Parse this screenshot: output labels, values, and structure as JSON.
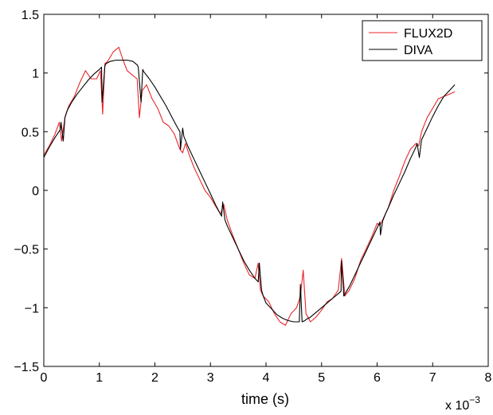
{
  "chart_data": {
    "type": "line",
    "title": "",
    "xlabel": "time (s)",
    "ylabel": "",
    "x_multiplier": "x 10",
    "x_multiplier_exponent": "−3",
    "xlim": [
      0,
      8
    ],
    "ylim": [
      -1.5,
      1.5
    ],
    "xticks": [
      "0",
      "1",
      "2",
      "3",
      "4",
      "5",
      "6",
      "7",
      "8"
    ],
    "yticks": [
      "−1.5",
      "−1",
      "−0.5",
      "0",
      "0.5",
      "1",
      "1.5"
    ],
    "legend_position": "top-right",
    "grid": false,
    "series": [
      {
        "name": "FLUX2D",
        "color": "#e8262b",
        "x": [
          0,
          0.1,
          0.2,
          0.28,
          0.32,
          0.38,
          0.45,
          0.55,
          0.65,
          0.75,
          0.85,
          0.95,
          1.02,
          1.06,
          1.1,
          1.15,
          1.25,
          1.35,
          1.42,
          1.5,
          1.6,
          1.68,
          1.72,
          1.77,
          1.85,
          1.95,
          2.05,
          2.15,
          2.25,
          2.35,
          2.45,
          2.5,
          2.55,
          2.62,
          2.7,
          2.8,
          2.9,
          3.0,
          3.1,
          3.18,
          3.24,
          3.3,
          3.4,
          3.5,
          3.6,
          3.7,
          3.8,
          3.86,
          3.9,
          3.95,
          4.05,
          4.15,
          4.25,
          4.35,
          4.45,
          4.55,
          4.62,
          4.67,
          4.72,
          4.8,
          4.9,
          5.0,
          5.1,
          5.2,
          5.3,
          5.36,
          5.42,
          5.5,
          5.6,
          5.7,
          5.8,
          5.9,
          6.0,
          6.05,
          6.1,
          6.2,
          6.3,
          6.4,
          6.5,
          6.6,
          6.7,
          6.75,
          6.8,
          6.9,
          7.0,
          7.1,
          7.2,
          7.3,
          7.4
        ],
        "y": [
          0.3,
          0.38,
          0.48,
          0.58,
          0.42,
          0.62,
          0.72,
          0.8,
          0.92,
          1.02,
          0.95,
          0.95,
          1.02,
          0.65,
          1.08,
          1.1,
          1.18,
          1.22,
          1.12,
          1.02,
          0.98,
          0.95,
          0.62,
          0.85,
          0.9,
          0.78,
          0.7,
          0.58,
          0.55,
          0.48,
          0.35,
          0.32,
          0.4,
          0.3,
          0.2,
          0.1,
          0.0,
          -0.06,
          -0.14,
          -0.2,
          -0.12,
          -0.25,
          -0.38,
          -0.5,
          -0.62,
          -0.72,
          -0.75,
          -0.62,
          -0.85,
          -0.9,
          -0.95,
          -1.05,
          -1.12,
          -1.15,
          -1.05,
          -1.0,
          -0.9,
          -0.68,
          -1.05,
          -1.12,
          -1.08,
          -1.02,
          -0.95,
          -0.92,
          -0.85,
          -0.58,
          -0.9,
          -0.85,
          -0.75,
          -0.6,
          -0.5,
          -0.4,
          -0.28,
          -0.3,
          -0.25,
          -0.15,
          0.0,
          0.12,
          0.25,
          0.35,
          0.4,
          0.38,
          0.5,
          0.62,
          0.7,
          0.78,
          0.8,
          0.82,
          0.84
        ]
      },
      {
        "name": "DIVA",
        "color": "#000000",
        "x": [
          0,
          0.1,
          0.2,
          0.3,
          0.31,
          0.35,
          0.38,
          0.42,
          0.5,
          0.6,
          0.7,
          0.8,
          0.9,
          1.0,
          1.04,
          1.05,
          1.1,
          1.12,
          1.2,
          1.3,
          1.4,
          1.5,
          1.6,
          1.68,
          1.7,
          1.75,
          1.78,
          1.8,
          1.9,
          2.0,
          2.1,
          2.2,
          2.3,
          2.4,
          2.45,
          2.46,
          2.5,
          2.52,
          2.6,
          2.7,
          2.8,
          2.9,
          3.0,
          3.1,
          3.2,
          3.22,
          3.26,
          3.3,
          3.4,
          3.5,
          3.6,
          3.7,
          3.8,
          3.86,
          3.88,
          3.92,
          3.95,
          4.0,
          4.1,
          4.2,
          4.3,
          4.4,
          4.5,
          4.6,
          4.62,
          4.65,
          4.7,
          4.72,
          4.8,
          4.9,
          5.0,
          5.1,
          5.2,
          5.3,
          5.35,
          5.36,
          5.4,
          5.45,
          5.5,
          5.6,
          5.7,
          5.8,
          5.9,
          6.0,
          6.05,
          6.06,
          6.1,
          6.15,
          6.2,
          6.3,
          6.4,
          6.5,
          6.6,
          6.7,
          6.72,
          6.76,
          6.8,
          6.9,
          7.0,
          7.1,
          7.2,
          7.3,
          7.4
        ],
        "y": [
          0.28,
          0.37,
          0.45,
          0.52,
          0.58,
          0.42,
          0.62,
          0.68,
          0.75,
          0.82,
          0.88,
          0.94,
          0.99,
          1.03,
          1.05,
          0.75,
          1.06,
          1.08,
          1.1,
          1.11,
          1.11,
          1.11,
          1.1,
          1.07,
          1.05,
          0.75,
          1.03,
          1.01,
          0.95,
          0.88,
          0.8,
          0.72,
          0.63,
          0.54,
          0.5,
          0.35,
          0.53,
          0.46,
          0.37,
          0.27,
          0.17,
          0.07,
          -0.03,
          -0.13,
          -0.22,
          -0.1,
          -0.25,
          -0.3,
          -0.4,
          -0.5,
          -0.6,
          -0.68,
          -0.75,
          -0.78,
          -0.62,
          -0.85,
          -0.9,
          -0.96,
          -1.01,
          -1.06,
          -1.09,
          -1.11,
          -1.12,
          -1.12,
          -0.8,
          -1.12,
          -1.11,
          -1.1,
          -1.08,
          -1.04,
          -1.0,
          -0.96,
          -0.92,
          -0.88,
          -0.86,
          -0.6,
          -0.9,
          -0.86,
          -0.82,
          -0.72,
          -0.62,
          -0.52,
          -0.42,
          -0.32,
          -0.27,
          -0.38,
          -0.26,
          -0.2,
          -0.15,
          -0.04,
          0.06,
          0.16,
          0.27,
          0.37,
          0.4,
          0.28,
          0.43,
          0.53,
          0.63,
          0.72,
          0.8,
          0.85,
          0.9
        ]
      }
    ]
  }
}
